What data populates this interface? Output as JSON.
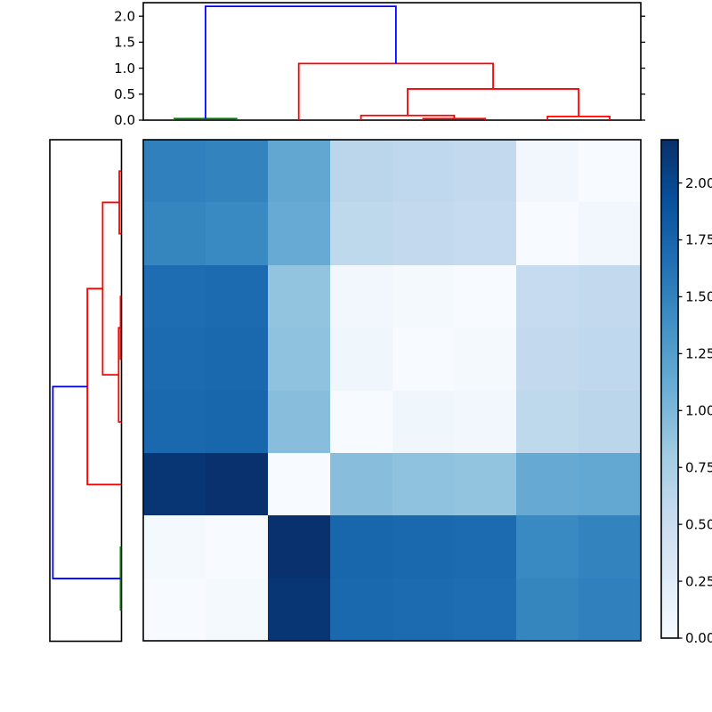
{
  "chart_data": {
    "type": "heatmap",
    "title": "",
    "description": "Hierarchically clustered pairwise distance matrix with column dendrogram (top), row dendrogram (left) and vertical colorbar (right). Blues colormap, white = 0 distance, dark navy = max distance.",
    "n_rows": 8,
    "n_cols": 8,
    "vmin": 0,
    "vmax": 2.19,
    "matrix": [
      [
        1.52,
        1.49,
        1.16,
        0.62,
        0.59,
        0.57,
        0.07,
        0.0
      ],
      [
        1.48,
        1.44,
        1.12,
        0.6,
        0.57,
        0.55,
        0.0,
        0.07
      ],
      [
        1.68,
        1.7,
        0.88,
        0.07,
        0.03,
        0.0,
        0.55,
        0.57
      ],
      [
        1.7,
        1.72,
        0.9,
        0.09,
        0.0,
        0.03,
        0.57,
        0.59
      ],
      [
        1.72,
        1.74,
        0.94,
        0.0,
        0.09,
        0.07,
        0.6,
        0.62
      ],
      [
        2.14,
        2.18,
        0.0,
        0.94,
        0.9,
        0.88,
        1.13,
        1.15
      ],
      [
        0.03,
        0.0,
        2.18,
        1.74,
        1.72,
        1.7,
        1.44,
        1.49
      ],
      [
        0.0,
        0.03,
        2.14,
        1.72,
        1.7,
        1.68,
        1.48,
        1.52
      ]
    ],
    "colormap": {
      "name": "Blues",
      "stops": [
        {
          "t": 0.0,
          "color": "#f7fbff"
        },
        {
          "t": 0.125,
          "color": "#deebf7"
        },
        {
          "t": 0.25,
          "color": "#c6dbef"
        },
        {
          "t": 0.375,
          "color": "#9ecae1"
        },
        {
          "t": 0.5,
          "color": "#6baed6"
        },
        {
          "t": 0.625,
          "color": "#4292c6"
        },
        {
          "t": 0.75,
          "color": "#2171b5"
        },
        {
          "t": 0.875,
          "color": "#08519c"
        },
        {
          "t": 1.0,
          "color": "#08306b"
        }
      ]
    },
    "column_dendrogram": {
      "orientation": "top",
      "axis_tick_labels": [
        "0.0",
        "0.5",
        "1.0",
        "1.5",
        "2.0"
      ],
      "axis_tick_values": [
        0,
        0.5,
        1.0,
        1.5,
        2.0
      ],
      "axis_max": 2.26,
      "links": [
        {
          "a": 0.5,
          "ah": 0,
          "b": 1.5,
          "bh": 0,
          "h": 0.03,
          "color": "#008000"
        },
        {
          "a": 4.5,
          "ah": 0,
          "b": 5.5,
          "bh": 0,
          "h": 0.03,
          "color": "#ff0000"
        },
        {
          "a": 3.5,
          "ah": 0,
          "b": 5.0,
          "bh": 0.03,
          "h": 0.09,
          "color": "#ff0000"
        },
        {
          "a": 6.5,
          "ah": 0,
          "b": 7.5,
          "bh": 0,
          "h": 0.07,
          "color": "#ff0000"
        },
        {
          "a": 4.25,
          "ah": 0.09,
          "b": 7.0,
          "bh": 0.07,
          "h": 0.6,
          "color": "#ff0000"
        },
        {
          "a": 2.5,
          "ah": 0,
          "b": 5.625,
          "bh": 0.6,
          "h": 1.09,
          "color": "#ff0000"
        },
        {
          "a": 1.0,
          "ah": 0.03,
          "b": 4.0625,
          "bh": 1.09,
          "h": 2.19,
          "color": "#0000ff"
        }
      ]
    },
    "row_dendrogram": {
      "orientation": "left",
      "axis_tick_labels": [],
      "axis_max": 2.26,
      "links": [
        {
          "a": 0.5,
          "ah": 0,
          "b": 1.5,
          "bh": 0,
          "h": 0.07,
          "color": "#ff0000"
        },
        {
          "a": 2.5,
          "ah": 0,
          "b": 3.5,
          "bh": 0,
          "h": 0.03,
          "color": "#ff0000"
        },
        {
          "a": 3.0,
          "ah": 0.03,
          "b": 4.5,
          "bh": 0,
          "h": 0.09,
          "color": "#ff0000"
        },
        {
          "a": 1.0,
          "ah": 0.07,
          "b": 3.75,
          "bh": 0.09,
          "h": 0.6,
          "color": "#ff0000"
        },
        {
          "a": 2.375,
          "ah": 0.6,
          "b": 5.5,
          "bh": 0,
          "h": 1.09,
          "color": "#ff0000"
        },
        {
          "a": 6.5,
          "ah": 0,
          "b": 7.5,
          "bh": 0,
          "h": 0.03,
          "color": "#008000"
        },
        {
          "a": 3.9375,
          "ah": 1.09,
          "b": 7.0,
          "bh": 0.03,
          "h": 2.19,
          "color": "#0000ff"
        }
      ]
    },
    "colorbar": {
      "tick_labels": [
        "0.00",
        "0.25",
        "0.50",
        "0.75",
        "1.00",
        "1.25",
        "1.50",
        "1.75",
        "2.00"
      ],
      "tick_values": [
        0,
        0.25,
        0.5,
        0.75,
        1.0,
        1.25,
        1.5,
        1.75,
        2.0
      ],
      "vmin": 0,
      "vmax": 2.19
    },
    "link_colors": {
      "cluster_green": "#008000",
      "cluster_red": "#ff0000",
      "above_threshold_blue": "#0000ff"
    },
    "frame_color": "#000000",
    "background_color": "#ffffff"
  }
}
